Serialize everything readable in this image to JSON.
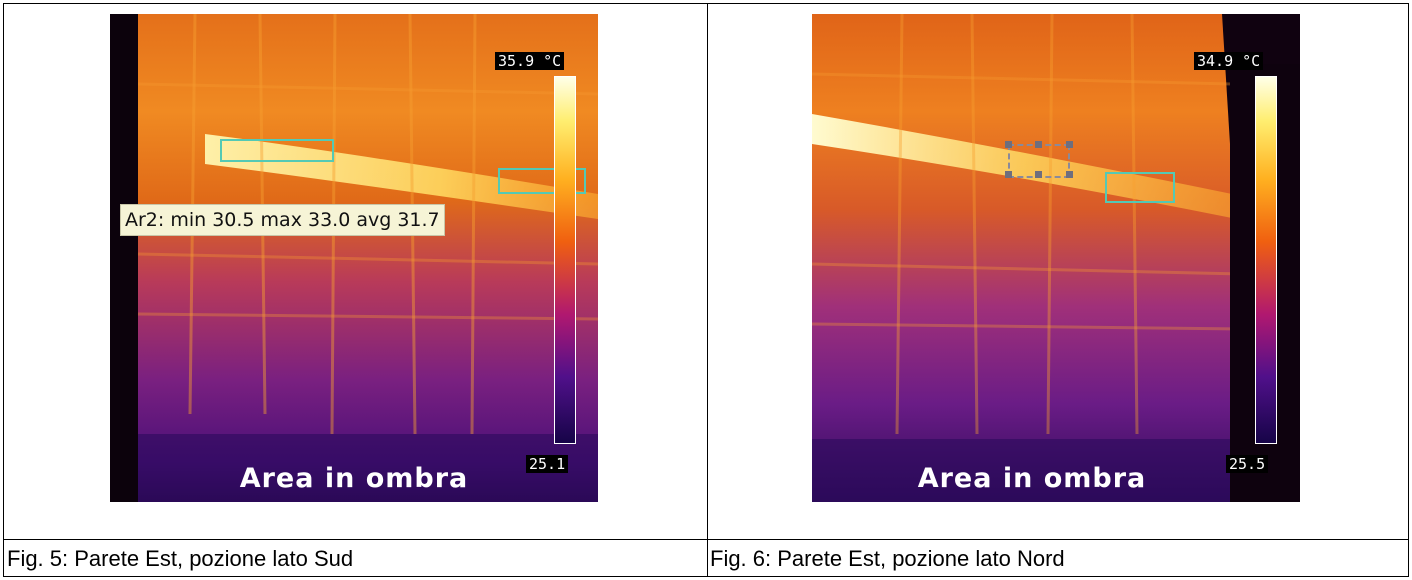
{
  "figures": [
    {
      "id": "fig5",
      "scale_max": "35.9 °C",
      "scale_min": "25.1",
      "overlay_label": "Area in ombra",
      "tooltip": "Ar2: min 30.5 max 33.0 avg 31.7",
      "caption": "Fig. 5: Parete Est, pozione lato Sud"
    },
    {
      "id": "fig6",
      "scale_max": "34.9 °C",
      "scale_min": "25.5",
      "overlay_label": "Area in ombra",
      "caption": "Fig. 6: Parete Est, pozione lato Nord"
    }
  ],
  "colors": {
    "palette": "ironbow",
    "roi": "#54c9b4",
    "tooltip_bg": "#f6f4d6"
  }
}
